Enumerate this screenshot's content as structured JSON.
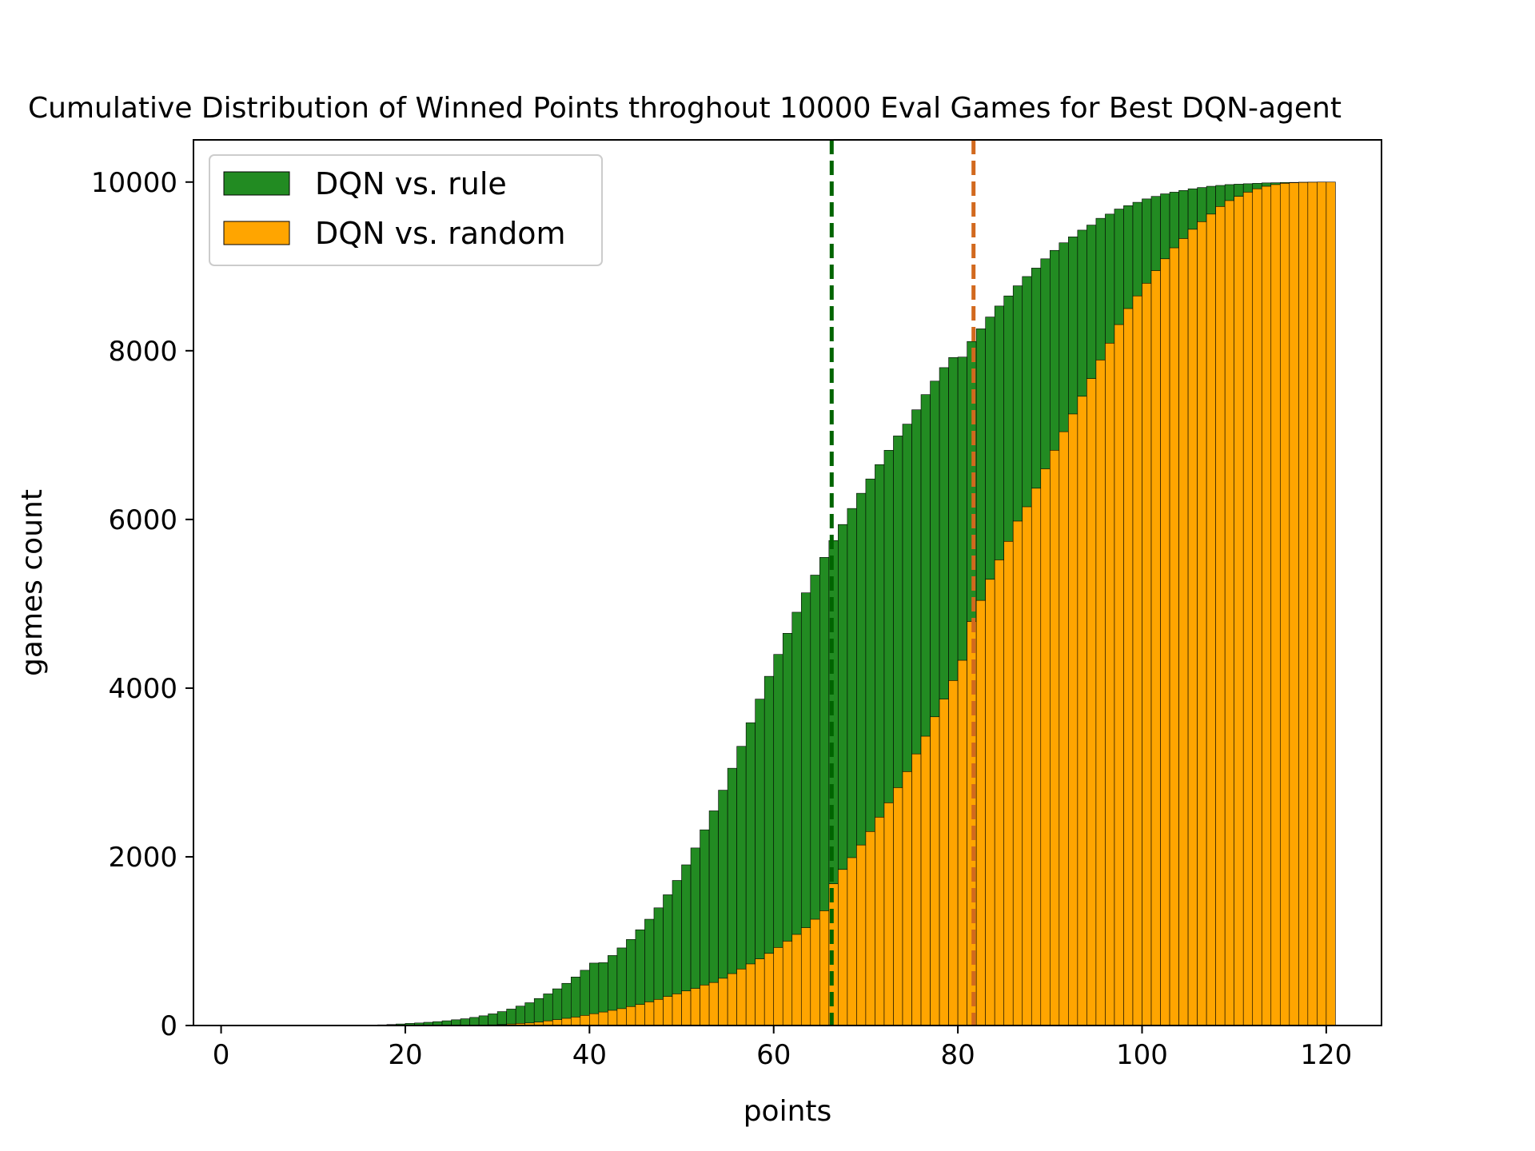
{
  "chart_data": {
    "type": "bar",
    "title": "Cumulative Distribution of Winned Points throghout 10000 Eval Games for Best DQN-agent",
    "xlabel": "points",
    "ylabel": "games count",
    "xlim": [
      -3,
      126
    ],
    "ylim": [
      0,
      10500
    ],
    "xticks": [
      0,
      20,
      40,
      60,
      80,
      100,
      120
    ],
    "yticks": [
      0,
      2000,
      4000,
      6000,
      8000,
      10000
    ],
    "grid": false,
    "legend": "top-left",
    "bin_start": 0,
    "bin_width": 1,
    "series": [
      {
        "name": "DQN vs. rule",
        "color": "#228b22",
        "values": [
          0,
          0,
          0,
          0,
          0,
          0,
          0,
          0,
          0,
          0,
          0,
          0,
          0,
          0,
          0,
          0,
          5,
          8,
          12,
          18,
          25,
          30,
          38,
          46,
          56,
          68,
          80,
          96,
          115,
          138,
          165,
          195,
          230,
          270,
          320,
          375,
          435,
          500,
          575,
          655,
          740,
          745,
          830,
          920,
          1020,
          1135,
          1260,
          1395,
          1550,
          1720,
          1905,
          2105,
          2320,
          2545,
          2790,
          3050,
          3310,
          3590,
          3870,
          4140,
          4400,
          4650,
          4900,
          5130,
          5340,
          5550,
          5750,
          5940,
          6130,
          6310,
          6480,
          6650,
          6820,
          6990,
          7130,
          7300,
          7480,
          7640,
          7800,
          7920,
          7925,
          8110,
          8260,
          8400,
          8530,
          8650,
          8770,
          8880,
          8980,
          9090,
          9190,
          9280,
          9350,
          9430,
          9490,
          9570,
          9620,
          9680,
          9720,
          9760,
          9800,
          9830,
          9860,
          9880,
          9900,
          9920,
          9935,
          9950,
          9960,
          9970,
          9975,
          9980,
          9985,
          9990,
          9992,
          9995,
          9996,
          9998,
          9999,
          10000
        ]
      },
      {
        "name": "DQN vs. random",
        "color": "#ffa500",
        "values": [
          0,
          0,
          0,
          0,
          0,
          0,
          0,
          0,
          0,
          0,
          0,
          0,
          0,
          0,
          0,
          0,
          0,
          0,
          0,
          0,
          0,
          0,
          0,
          0,
          0,
          0,
          0,
          0,
          5,
          8,
          12,
          18,
          25,
          30,
          40,
          55,
          70,
          85,
          100,
          120,
          140,
          160,
          180,
          200,
          225,
          250,
          280,
          310,
          345,
          375,
          410,
          440,
          480,
          510,
          560,
          615,
          670,
          730,
          790,
          855,
          925,
          1000,
          1080,
          1160,
          1260,
          1360,
          1680,
          1850,
          1990,
          2140,
          2300,
          2470,
          2640,
          2820,
          3010,
          3220,
          3430,
          3660,
          3870,
          4090,
          4330,
          4790,
          5040,
          5290,
          5520,
          5740,
          5980,
          6150,
          6370,
          6600,
          6820,
          7040,
          7250,
          7460,
          7670,
          7890,
          8090,
          8310,
          8500,
          8650,
          8800,
          8950,
          9090,
          9220,
          9330,
          9440,
          9530,
          9620,
          9710,
          9780,
          9830,
          9880,
          9920,
          9950,
          9970,
          9985,
          9992,
          9996,
          9998,
          10000,
          10000
        ]
      }
    ],
    "annotations": [
      {
        "type": "vline",
        "x": 66.3,
        "color": "#006400",
        "style": "dashed"
      },
      {
        "type": "vline",
        "x": 81.7,
        "color": "#d2691e",
        "style": "dashed"
      }
    ]
  }
}
